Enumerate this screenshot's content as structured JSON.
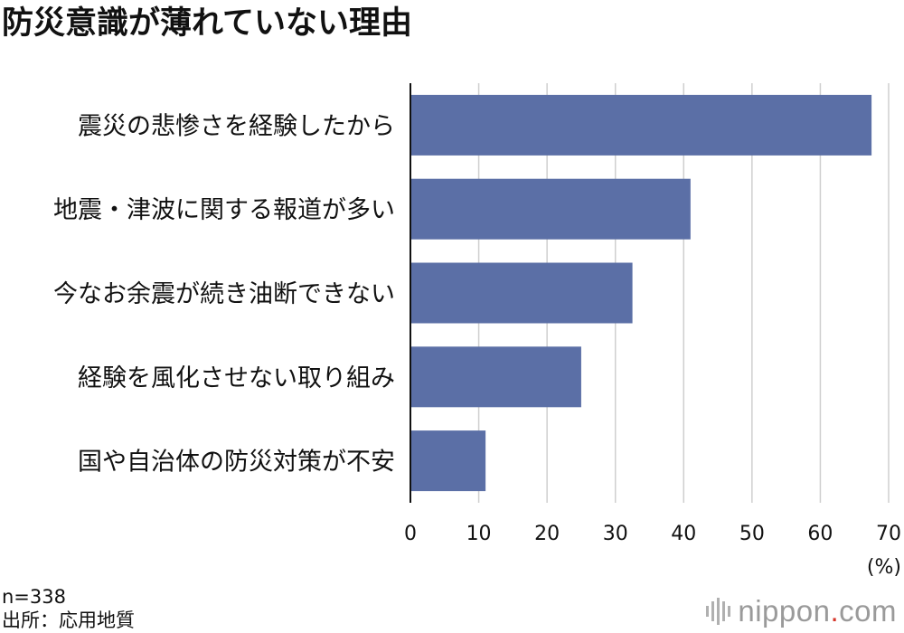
{
  "title": "防災意識が薄れていない理由",
  "chart_data": {
    "type": "bar",
    "orientation": "horizontal",
    "categories": [
      "震災の悲惨さを経験したから",
      "地震・津波に関する報道が多い",
      "今なお余震が続き油断できない",
      "経験を風化させない取り組み",
      "国や自治体の防災対策が不安"
    ],
    "values": [
      67.5,
      41.0,
      32.5,
      25.0,
      11.0
    ],
    "xlim": [
      0,
      70
    ],
    "xticks": [
      0,
      10,
      20,
      30,
      40,
      50,
      60,
      70
    ],
    "xlabel": "(%)",
    "grid": "vertical",
    "bar_color": "#5b6fa6"
  },
  "footer": {
    "sample": "n=338",
    "source": "出所：応用地質"
  },
  "logo": {
    "name": "nippon",
    "dot": ".",
    "suffix": "com"
  }
}
